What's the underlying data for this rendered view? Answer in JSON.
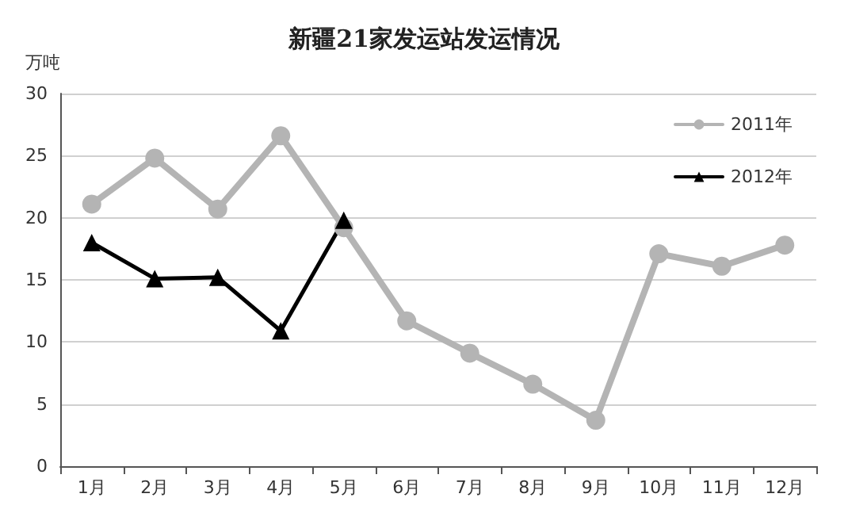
{
  "chart_data": {
    "type": "line",
    "title": "新疆21家发运站发运情况",
    "ylabel": "万吨",
    "categories": [
      "1月",
      "2月",
      "3月",
      "4月",
      "5月",
      "6月",
      "7月",
      "8月",
      "9月",
      "10月",
      "11月",
      "12月"
    ],
    "series": [
      {
        "name": "2011年",
        "color": "#b4b4b4",
        "marker": "circle",
        "values": [
          21.1,
          24.8,
          20.7,
          26.6,
          19.2,
          11.7,
          9.1,
          6.6,
          3.7,
          17.1,
          16.1,
          17.8
        ]
      },
      {
        "name": "2012年",
        "color": "#000000",
        "marker": "triangle",
        "values": [
          18.0,
          15.1,
          15.2,
          10.9,
          19.8,
          null,
          null,
          null,
          null,
          null,
          null,
          null
        ]
      }
    ],
    "ylim": [
      0,
      30
    ],
    "yticks": [
      0,
      5,
      10,
      15,
      20,
      25,
      30
    ],
    "grid": "y",
    "legend": "top right",
    "line_style": "solid"
  }
}
